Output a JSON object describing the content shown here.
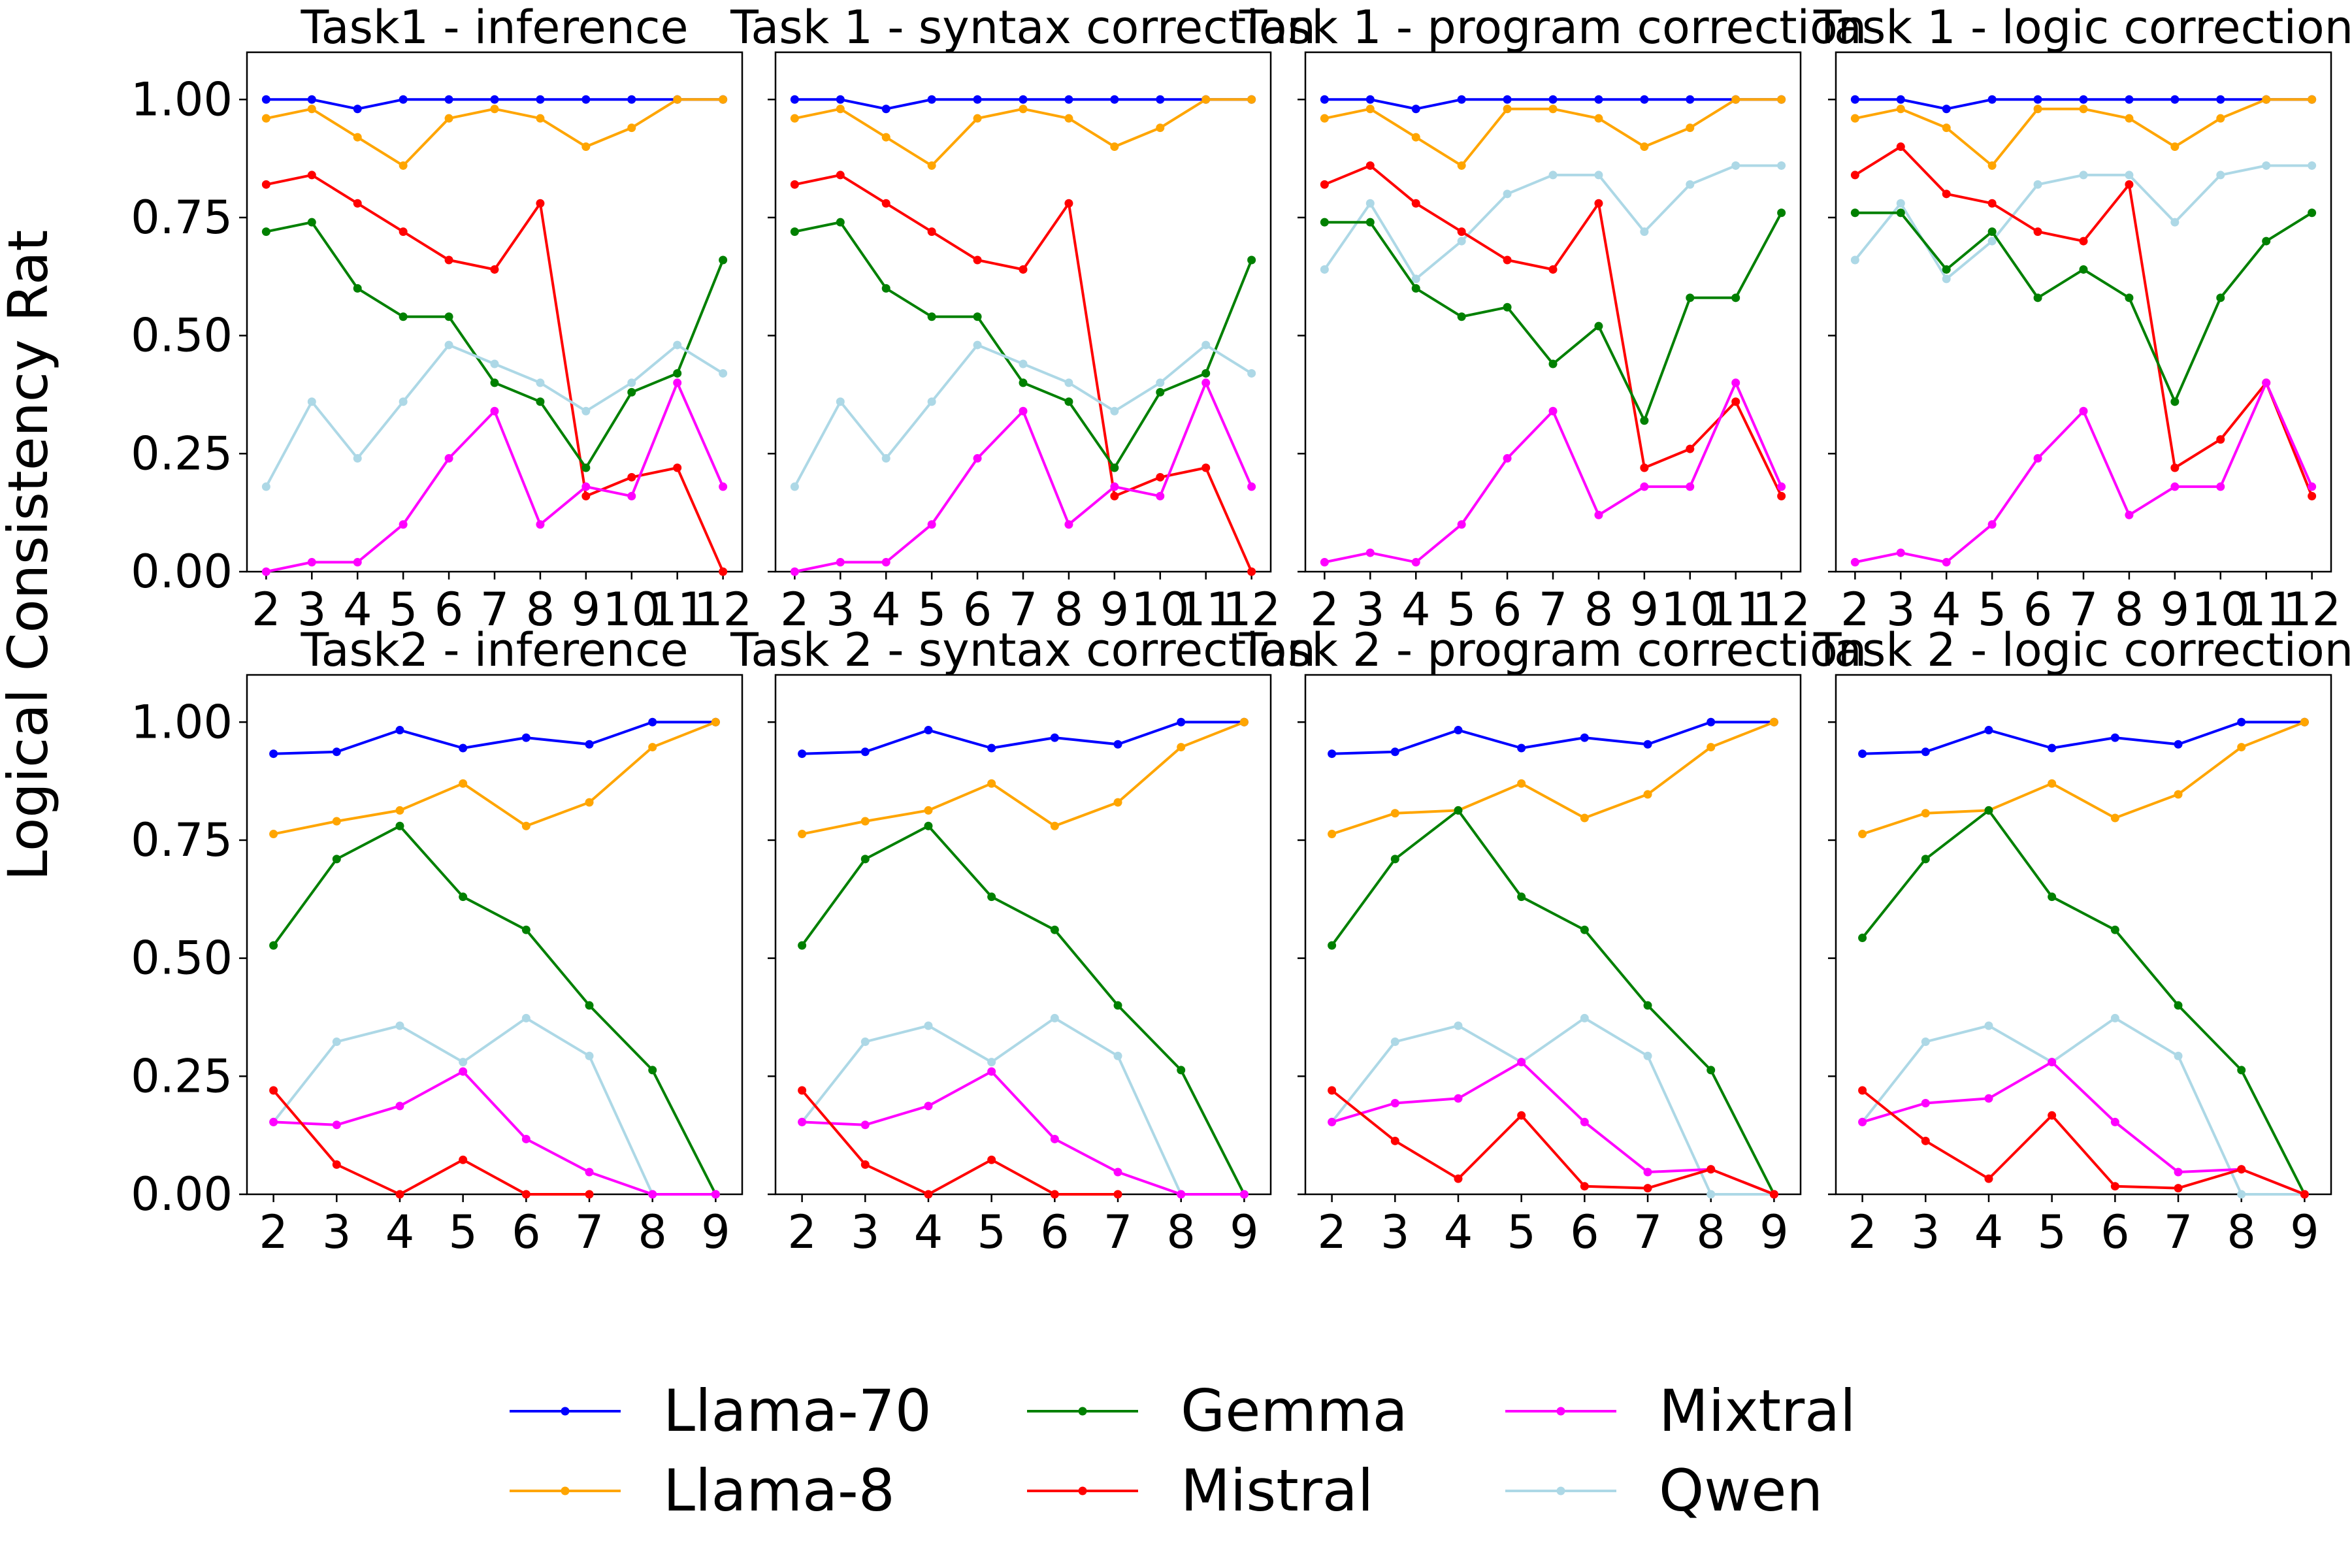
{
  "ylabel": "Logical Consistency Rat",
  "colors": {
    "Llama-70": "#0000ff",
    "Llama-8": "#ffa500",
    "Gemma": "#008000",
    "Mistral": "#ff0000",
    "Mixtral": "#ff00ff",
    "Qwen": "#add8e6"
  },
  "legend": {
    "placement": "bottom-center",
    "entries": [
      "Llama-70",
      "Llama-8",
      "Gemma",
      "Mistral",
      "Mixtral",
      "Qwen"
    ]
  },
  "chart_data": [
    {
      "type": "line",
      "title": "Task1 - inference",
      "x": [
        2,
        3,
        4,
        5,
        6,
        7,
        8,
        9,
        10,
        11,
        12
      ],
      "ylim": [
        0,
        1.1
      ],
      "yticks": [
        0.0,
        0.25,
        0.5,
        0.75,
        1.0
      ],
      "series": [
        {
          "name": "Llama-70",
          "values": [
            1.0,
            1.0,
            0.98,
            1.0,
            1.0,
            1.0,
            1.0,
            1.0,
            1.0,
            1.0,
            1.0
          ]
        },
        {
          "name": "Llama-8",
          "values": [
            0.96,
            0.98,
            0.92,
            0.86,
            0.96,
            0.98,
            0.96,
            0.9,
            0.94,
            1.0,
            1.0
          ]
        },
        {
          "name": "Mistral",
          "values": [
            0.82,
            0.84,
            0.78,
            0.72,
            0.66,
            0.64,
            0.78,
            0.16,
            0.2,
            0.22,
            0.0
          ]
        },
        {
          "name": "Gemma",
          "values": [
            0.72,
            0.74,
            0.6,
            0.54,
            0.54,
            0.4,
            0.36,
            0.22,
            0.38,
            0.42,
            0.66
          ]
        },
        {
          "name": "Qwen",
          "values": [
            0.18,
            0.36,
            0.24,
            0.36,
            0.48,
            0.44,
            0.4,
            0.34,
            0.4,
            0.48,
            0.42
          ]
        },
        {
          "name": "Mixtral",
          "values": [
            0.0,
            0.02,
            0.02,
            0.1,
            0.24,
            0.34,
            0.1,
            0.18,
            0.16,
            0.4,
            0.18
          ]
        }
      ]
    },
    {
      "type": "line",
      "title": "Task 1 - syntax correction",
      "x": [
        2,
        3,
        4,
        5,
        6,
        7,
        8,
        9,
        10,
        11,
        12
      ],
      "ylim": [
        0,
        1.1
      ],
      "yticks": [
        0.0,
        0.25,
        0.5,
        0.75,
        1.0
      ],
      "series": [
        {
          "name": "Llama-70",
          "values": [
            1.0,
            1.0,
            0.98,
            1.0,
            1.0,
            1.0,
            1.0,
            1.0,
            1.0,
            1.0,
            1.0
          ]
        },
        {
          "name": "Llama-8",
          "values": [
            0.96,
            0.98,
            0.92,
            0.86,
            0.96,
            0.98,
            0.96,
            0.9,
            0.94,
            1.0,
            1.0
          ]
        },
        {
          "name": "Mistral",
          "values": [
            0.82,
            0.84,
            0.78,
            0.72,
            0.66,
            0.64,
            0.78,
            0.16,
            0.2,
            0.22,
            0.0
          ]
        },
        {
          "name": "Gemma",
          "values": [
            0.72,
            0.74,
            0.6,
            0.54,
            0.54,
            0.4,
            0.36,
            0.22,
            0.38,
            0.42,
            0.66
          ]
        },
        {
          "name": "Qwen",
          "values": [
            0.18,
            0.36,
            0.24,
            0.36,
            0.48,
            0.44,
            0.4,
            0.34,
            0.4,
            0.48,
            0.42
          ]
        },
        {
          "name": "Mixtral",
          "values": [
            0.0,
            0.02,
            0.02,
            0.1,
            0.24,
            0.34,
            0.1,
            0.18,
            0.16,
            0.4,
            0.18
          ]
        }
      ]
    },
    {
      "type": "line",
      "title": "Task 1 - program correction",
      "x": [
        2,
        3,
        4,
        5,
        6,
        7,
        8,
        9,
        10,
        11,
        12
      ],
      "ylim": [
        0,
        1.1
      ],
      "yticks": [
        0.0,
        0.25,
        0.5,
        0.75,
        1.0
      ],
      "series": [
        {
          "name": "Llama-70",
          "values": [
            1.0,
            1.0,
            0.98,
            1.0,
            1.0,
            1.0,
            1.0,
            1.0,
            1.0,
            1.0,
            1.0
          ]
        },
        {
          "name": "Llama-8",
          "values": [
            0.96,
            0.98,
            0.92,
            0.86,
            0.98,
            0.98,
            0.96,
            0.9,
            0.94,
            1.0,
            1.0
          ]
        },
        {
          "name": "Qwen",
          "values": [
            0.64,
            0.78,
            0.62,
            0.7,
            0.8,
            0.84,
            0.84,
            0.72,
            0.82,
            0.86,
            0.86
          ]
        },
        {
          "name": "Mistral",
          "values": [
            0.82,
            0.86,
            0.78,
            0.72,
            0.66,
            0.64,
            0.78,
            0.22,
            0.26,
            0.36,
            0.16
          ]
        },
        {
          "name": "Gemma",
          "values": [
            0.74,
            0.74,
            0.6,
            0.54,
            0.56,
            0.44,
            0.52,
            0.32,
            0.58,
            0.58,
            0.76
          ]
        },
        {
          "name": "Mixtral",
          "values": [
            0.02,
            0.04,
            0.02,
            0.1,
            0.24,
            0.34,
            0.12,
            0.18,
            0.18,
            0.4,
            0.18
          ]
        }
      ]
    },
    {
      "type": "line",
      "title": "Task 1 - logic correction",
      "x": [
        2,
        3,
        4,
        5,
        6,
        7,
        8,
        9,
        10,
        11,
        12
      ],
      "ylim": [
        0,
        1.1
      ],
      "yticks": [
        0.0,
        0.25,
        0.5,
        0.75,
        1.0
      ],
      "series": [
        {
          "name": "Llama-70",
          "values": [
            1.0,
            1.0,
            0.98,
            1.0,
            1.0,
            1.0,
            1.0,
            1.0,
            1.0,
            1.0,
            1.0
          ]
        },
        {
          "name": "Llama-8",
          "values": [
            0.96,
            0.98,
            0.94,
            0.86,
            0.98,
            0.98,
            0.96,
            0.9,
            0.96,
            1.0,
            1.0
          ]
        },
        {
          "name": "Qwen",
          "values": [
            0.66,
            0.78,
            0.62,
            0.7,
            0.82,
            0.84,
            0.84,
            0.74,
            0.84,
            0.86,
            0.86
          ]
        },
        {
          "name": "Mistral",
          "values": [
            0.84,
            0.9,
            0.8,
            0.78,
            0.72,
            0.7,
            0.82,
            0.22,
            0.28,
            0.4,
            0.16
          ]
        },
        {
          "name": "Gemma",
          "values": [
            0.76,
            0.76,
            0.64,
            0.72,
            0.58,
            0.64,
            0.58,
            0.36,
            0.58,
            0.7,
            0.76
          ]
        },
        {
          "name": "Mixtral",
          "values": [
            0.02,
            0.04,
            0.02,
            0.1,
            0.24,
            0.34,
            0.12,
            0.18,
            0.18,
            0.4,
            0.18
          ]
        }
      ]
    },
    {
      "type": "line",
      "title": "Task2 - inference",
      "x": [
        2,
        3,
        4,
        5,
        6,
        7,
        8,
        9
      ],
      "ylim": [
        0,
        1.1
      ],
      "yticks": [
        0.0,
        0.25,
        0.5,
        0.75,
        1.0
      ],
      "series": [
        {
          "name": "Llama-70",
          "values": [
            0.933,
            0.937,
            0.983,
            0.945,
            0.967,
            0.953,
            1.0,
            1.0
          ]
        },
        {
          "name": "Llama-8",
          "values": [
            0.763,
            0.79,
            0.813,
            0.87,
            0.78,
            0.83,
            0.947,
            1.0
          ]
        },
        {
          "name": "Gemma",
          "values": [
            0.527,
            0.71,
            0.78,
            0.63,
            0.56,
            0.4,
            0.263,
            0.0
          ]
        },
        {
          "name": "Qwen",
          "values": [
            0.153,
            0.323,
            0.357,
            0.28,
            0.373,
            0.293,
            0.0,
            0.0
          ]
        },
        {
          "name": "Mixtral",
          "values": [
            0.153,
            0.147,
            0.187,
            0.26,
            0.117,
            0.047,
            0.0,
            0.0
          ]
        },
        {
          "name": "Mistral",
          "values": [
            0.22,
            0.063,
            0.0,
            0.073,
            0.0,
            0.0,
            null,
            null
          ]
        }
      ]
    },
    {
      "type": "line",
      "title": "Task 2 - syntax correction",
      "x": [
        2,
        3,
        4,
        5,
        6,
        7,
        8,
        9
      ],
      "ylim": [
        0,
        1.1
      ],
      "yticks": [
        0.0,
        0.25,
        0.5,
        0.75,
        1.0
      ],
      "series": [
        {
          "name": "Llama-70",
          "values": [
            0.933,
            0.937,
            0.983,
            0.945,
            0.967,
            0.953,
            1.0,
            1.0
          ]
        },
        {
          "name": "Llama-8",
          "values": [
            0.763,
            0.79,
            0.813,
            0.87,
            0.78,
            0.83,
            0.947,
            1.0
          ]
        },
        {
          "name": "Gemma",
          "values": [
            0.527,
            0.71,
            0.78,
            0.63,
            0.56,
            0.4,
            0.263,
            0.0
          ]
        },
        {
          "name": "Qwen",
          "values": [
            0.153,
            0.323,
            0.357,
            0.28,
            0.373,
            0.293,
            0.0,
            0.0
          ]
        },
        {
          "name": "Mixtral",
          "values": [
            0.153,
            0.147,
            0.187,
            0.26,
            0.117,
            0.047,
            0.0,
            0.0
          ]
        },
        {
          "name": "Mistral",
          "values": [
            0.22,
            0.063,
            0.0,
            0.073,
            0.0,
            0.0,
            null,
            null
          ]
        }
      ]
    },
    {
      "type": "line",
      "title": "Task 2 - program correction",
      "x": [
        2,
        3,
        4,
        5,
        6,
        7,
        8,
        9
      ],
      "ylim": [
        0,
        1.1
      ],
      "yticks": [
        0.0,
        0.25,
        0.5,
        0.75,
        1.0
      ],
      "series": [
        {
          "name": "Llama-70",
          "values": [
            0.933,
            0.937,
            0.983,
            0.945,
            0.967,
            0.953,
            1.0,
            1.0
          ]
        },
        {
          "name": "Llama-8",
          "values": [
            0.763,
            0.807,
            0.813,
            0.87,
            0.797,
            0.847,
            0.947,
            1.0
          ]
        },
        {
          "name": "Gemma",
          "values": [
            0.527,
            0.71,
            0.813,
            0.63,
            0.56,
            0.4,
            0.263,
            0.0
          ]
        },
        {
          "name": "Qwen",
          "values": [
            0.153,
            0.323,
            0.357,
            0.28,
            0.373,
            0.293,
            0.0,
            0.0
          ]
        },
        {
          "name": "Mixtral",
          "values": [
            0.153,
            0.193,
            0.203,
            0.28,
            0.153,
            0.047,
            0.053,
            0.0
          ]
        },
        {
          "name": "Mistral",
          "values": [
            0.22,
            0.113,
            0.033,
            0.167,
            0.017,
            0.013,
            0.053,
            0.0
          ]
        }
      ]
    },
    {
      "type": "line",
      "title": "Task 2 - logic correction",
      "x": [
        2,
        3,
        4,
        5,
        6,
        7,
        8,
        9
      ],
      "ylim": [
        0,
        1.1
      ],
      "yticks": [
        0.0,
        0.25,
        0.5,
        0.75,
        1.0
      ],
      "series": [
        {
          "name": "Llama-70",
          "values": [
            0.933,
            0.937,
            0.983,
            0.945,
            0.967,
            0.953,
            1.0,
            1.0
          ]
        },
        {
          "name": "Llama-8",
          "values": [
            0.763,
            0.807,
            0.813,
            0.87,
            0.797,
            0.847,
            0.947,
            1.0
          ]
        },
        {
          "name": "Gemma",
          "values": [
            0.543,
            0.71,
            0.813,
            0.63,
            0.56,
            0.4,
            0.263,
            0.0
          ]
        },
        {
          "name": "Qwen",
          "values": [
            0.153,
            0.323,
            0.357,
            0.28,
            0.373,
            0.293,
            0.0,
            0.0
          ]
        },
        {
          "name": "Mixtral",
          "values": [
            0.153,
            0.193,
            0.203,
            0.28,
            0.153,
            0.047,
            0.053,
            0.0
          ]
        },
        {
          "name": "Mistral",
          "values": [
            0.22,
            0.113,
            0.033,
            0.167,
            0.017,
            0.013,
            0.053,
            0.0
          ]
        }
      ]
    }
  ]
}
